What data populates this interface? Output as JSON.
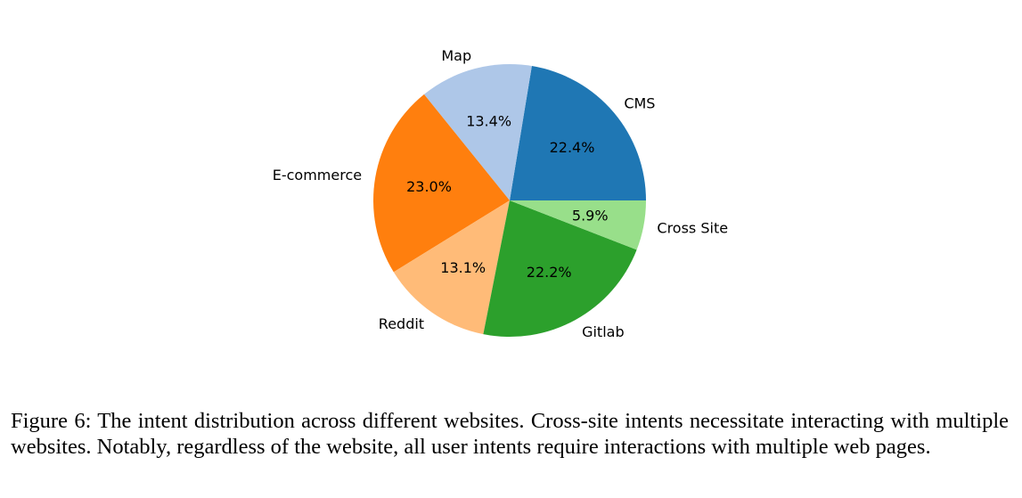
{
  "chart_data": {
    "type": "pie",
    "categories": [
      "CMS",
      "Cross Site",
      "Gitlab",
      "Reddit",
      "E-commerce",
      "Map"
    ],
    "values": [
      22.4,
      5.9,
      22.2,
      13.1,
      23.0,
      13.4
    ],
    "value_labels": [
      "22.4%",
      "5.9%",
      "22.2%",
      "13.1%",
      "23.0%",
      "13.4%"
    ],
    "colors": [
      "#1f77b4",
      "#98df8a",
      "#2ca02c",
      "#ffbb78",
      "#ff7f0e",
      "#aec7e8"
    ],
    "start_angle_deg": 0,
    "direction": "counterclockwise-from-east-reversed",
    "title": "",
    "legend": "none"
  },
  "caption": "Figure 6: The intent distribution across different websites. Cross-site intents necessitate interacting with multiple websites. Notably, regardless of the website, all user intents require interactions with multiple web pages."
}
